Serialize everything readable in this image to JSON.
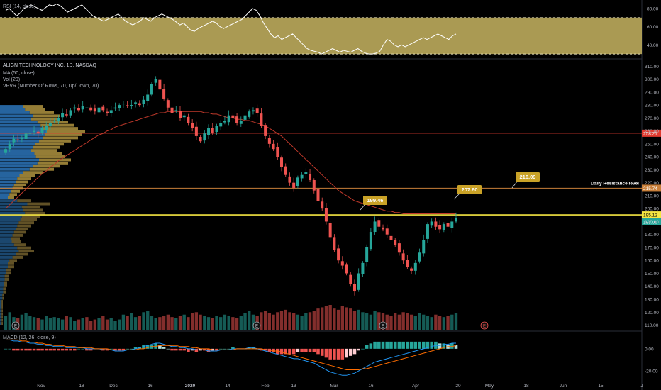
{
  "chart_data": [
    {
      "type": "line",
      "title": "RSI (14, close)",
      "yticks": [
        40,
        60,
        80
      ],
      "ylim": [
        27,
        87
      ],
      "band": [
        30,
        70
      ],
      "colors": {
        "band": "#c8b561",
        "line": "#ffffff"
      },
      "values": [
        78,
        80,
        76,
        72,
        75,
        80,
        82,
        84,
        82,
        80,
        78,
        81,
        84,
        83,
        85,
        83,
        80,
        76,
        78,
        80,
        82,
        84,
        80,
        76,
        72,
        70,
        68,
        66,
        68,
        70,
        72,
        74,
        70,
        66,
        64,
        62,
        64,
        66,
        70,
        68,
        66,
        70,
        72,
        74,
        72,
        70,
        68,
        65,
        62,
        64,
        60,
        56,
        55,
        58,
        60,
        62,
        64,
        66,
        64,
        60,
        58,
        60,
        62,
        64,
        66,
        68,
        72,
        76,
        80,
        78,
        72,
        64,
        58,
        52,
        48,
        50,
        46,
        48,
        50,
        52,
        48,
        44,
        40,
        36,
        34,
        33,
        32,
        30,
        32,
        34,
        36,
        34,
        32,
        34,
        33,
        32,
        34,
        36,
        33,
        31,
        30,
        30,
        31,
        33,
        40,
        46,
        44,
        40,
        38,
        40,
        38,
        40,
        42,
        44,
        46,
        48,
        46,
        48,
        50,
        52,
        50,
        48,
        46,
        50,
        52
      ]
    },
    {
      "type": "candlestick",
      "title": "ALIGN TECHNOLOGY INC, 1D, NASDAQ",
      "legend": [
        "MA (50, close)",
        "Vol (20)",
        "VPVR (Number Of Rows, 70, Up/Down, 70)"
      ],
      "yticks": [
        110,
        120,
        130,
        140,
        150,
        160,
        170,
        180,
        190,
        200,
        210,
        220,
        230,
        240,
        250,
        260,
        270,
        280,
        290,
        300,
        310
      ],
      "ylim": [
        107,
        314
      ],
      "xticks": [
        "Nov",
        "18",
        "Dec",
        "16",
        "2020",
        "14",
        "Feb",
        "13",
        "Mar",
        "16",
        "Apr",
        "20",
        "May",
        "18",
        "Jun",
        "15",
        "J"
      ],
      "colors": {
        "up": "#26a69a",
        "down": "#ef5350",
        "ma": "#c0392b",
        "support": "#f5e642",
        "resistance": "#e03a2f",
        "daily_res": "#c87f3a",
        "callout": "#c9a227"
      },
      "closes": [
        246,
        250,
        254,
        253,
        255,
        258,
        258,
        260,
        258,
        262,
        264,
        266,
        268,
        270,
        274,
        272,
        276,
        278,
        276,
        279,
        278,
        276,
        275,
        278,
        276,
        274,
        276,
        278,
        280,
        281,
        279,
        280,
        282,
        280,
        284,
        288,
        296,
        300,
        292,
        285,
        278,
        274,
        276,
        270,
        272,
        266,
        262,
        256,
        252,
        258,
        262,
        258,
        264,
        266,
        268,
        272,
        270,
        266,
        268,
        272,
        275,
        276,
        274,
        264,
        256,
        250,
        246,
        240,
        232,
        226,
        220,
        216,
        224,
        226,
        228,
        222,
        214,
        206,
        200,
        190,
        178,
        168,
        160,
        156,
        150,
        142,
        136,
        150,
        158,
        170,
        182,
        190,
        186,
        184,
        180,
        176,
        172,
        166,
        160,
        155,
        152,
        158,
        166,
        176,
        188,
        190,
        186,
        184,
        188,
        186,
        190,
        193
      ],
      "volumes": [
        1.2,
        1.5,
        1.1,
        1.0,
        1.3,
        1.4,
        1.2,
        1.1,
        1.0,
        0.9,
        1.2,
        1.0,
        1.1,
        1.0,
        0.9,
        1.2,
        1.1,
        0.8,
        0.9,
        1.0,
        1.1,
        0.8,
        0.9,
        1.0,
        1.2,
        0.9,
        1.0,
        0.8,
        0.9,
        1.3,
        1.2,
        1.4,
        1.1,
        1.2,
        1.5,
        1.6,
        1.2,
        1.0,
        1.1,
        1.2,
        1.3,
        1.1,
        1.0,
        1.2,
        1.3,
        1.1,
        1.4,
        1.5,
        1.3,
        1.2,
        1.1,
        1.0,
        1.2,
        1.1,
        1.3,
        1.2,
        1.1,
        1.0,
        1.2,
        1.4,
        1.6,
        1.3,
        1.2,
        1.5,
        1.6,
        1.4,
        1.3,
        1.5,
        1.6,
        1.7,
        1.5,
        1.4,
        1.3,
        1.2,
        1.4,
        1.5,
        1.6,
        1.8,
        1.9,
        2.0,
        2.1,
        1.8,
        1.7,
        2.0,
        1.9,
        1.8,
        1.6,
        1.7,
        1.5,
        1.4,
        1.3,
        1.6,
        1.5,
        1.4,
        1.3,
        1.2,
        1.4,
        1.3,
        1.5,
        1.4,
        1.3,
        1.2,
        1.4,
        1.3,
        1.2,
        1.1,
        1.3,
        1.2,
        1.1,
        1.2,
        1.3,
        1.4
      ],
      "ma50": [
        200,
        203,
        206,
        209,
        212,
        215,
        218,
        221,
        224,
        227,
        229,
        232,
        234,
        237,
        239,
        241,
        243,
        245,
        247,
        249,
        251,
        253,
        255,
        257,
        258,
        260,
        261,
        263,
        264,
        265,
        266,
        267,
        268,
        269,
        270,
        271,
        272,
        273,
        274,
        274,
        275,
        275,
        275,
        275,
        275,
        275,
        275,
        275,
        275,
        274,
        274,
        273,
        273,
        272,
        271,
        270,
        270,
        269,
        269,
        268,
        268,
        267,
        266,
        265,
        264,
        262,
        260,
        258,
        256,
        253,
        250,
        247,
        244,
        241,
        238,
        235,
        232,
        229,
        226,
        223,
        220,
        217,
        214,
        212,
        210,
        208,
        206,
        205,
        204,
        203,
        202,
        201,
        200,
        199,
        198,
        198,
        197,
        197,
        196,
        196,
        196,
        196,
        196,
        196,
        196,
        196,
        196,
        196,
        196,
        196,
        196,
        196
      ],
      "levels": [
        {
          "name": "resistance",
          "value": 258.21,
          "label": "258.21",
          "color": "#e03a2f"
        },
        {
          "name": "daily-resistance",
          "value": 215.74,
          "label": "215.74",
          "color": "#c87f3a"
        },
        {
          "name": "support",
          "value": 195.12,
          "label": "195.12",
          "color": "#f5e642"
        }
      ],
      "last_price": {
        "value": 193.0,
        "label": "193.00",
        "color": "#26a69a"
      },
      "annotations": [
        {
          "text": "199.46",
          "x_index": 79,
          "y": 199.46
        },
        {
          "text": "207.60",
          "x_index": 111,
          "y": 207.6
        },
        {
          "text": "216.09",
          "x_date_px_hint": "May",
          "y": 216.09
        },
        {
          "text": "Daily Resistance level",
          "y": 219.5
        }
      ],
      "event_markers": [
        "E",
        "E",
        "E",
        "E"
      ],
      "vpvr_profile": [
        0.3,
        0.32,
        0.38,
        0.42,
        0.4,
        0.48,
        0.52,
        0.55,
        0.6,
        0.58,
        0.55,
        0.5,
        0.45,
        0.42,
        0.4,
        0.44,
        0.46,
        0.5,
        0.48,
        0.42,
        0.38,
        0.3,
        0.25,
        0.22,
        0.2,
        0.18,
        0.16,
        0.14,
        0.12,
        0.1,
        0.22,
        0.35,
        0.28,
        0.3,
        0.32,
        0.28,
        0.26,
        0.24,
        0.22,
        0.2,
        0.18,
        0.16,
        0.14,
        0.15,
        0.18,
        0.22,
        0.24,
        0.2,
        0.16,
        0.12,
        0.1,
        0.1,
        0.08,
        0.08,
        0.06,
        0.06,
        0.05,
        0.05,
        0.04,
        0.04,
        0.03,
        0.03,
        0.02,
        0.02,
        0.02,
        0.02,
        0.02,
        0.02,
        0.02,
        0.02
      ]
    },
    {
      "type": "histogram",
      "title": "MACD (12, 26, close, 9)",
      "yticks": [
        0.0,
        -20.0
      ],
      "ytick_labels": [
        "0.00",
        "-20.00"
      ],
      "ylim": [
        -27,
        14
      ],
      "colors": {
        "macd": "#2196f3",
        "signal": "#ff6d00",
        "hist_up": "#26a69a",
        "hist_up_weak": "#b2dfdb",
        "hist_down": "#ef5350",
        "hist_down_weak": "#ffcdd2"
      },
      "macd": [
        8,
        8,
        7,
        7,
        6,
        6,
        5,
        5,
        4,
        4,
        3,
        3,
        2,
        2,
        2,
        1,
        1,
        1,
        1,
        1,
        0,
        0,
        0,
        0,
        -1,
        -1,
        -1,
        -2,
        -2,
        -2,
        -1,
        -1,
        0,
        1,
        2,
        3,
        4,
        5,
        5,
        4,
        3,
        2,
        2,
        1,
        1,
        0,
        0,
        -1,
        -1,
        -1,
        -2,
        -2,
        -2,
        -1,
        -1,
        -1,
        0,
        0,
        0,
        0,
        1,
        1,
        0,
        -1,
        -2,
        -3,
        -4,
        -5,
        -6,
        -7,
        -8,
        -9,
        -9,
        -10,
        -11,
        -12,
        -13,
        -15,
        -17,
        -19,
        -21,
        -22,
        -23,
        -24,
        -24,
        -23,
        -22,
        -20,
        -18,
        -16,
        -14,
        -12,
        -11,
        -10,
        -9,
        -8,
        -7,
        -6,
        -5,
        -4,
        -3,
        -2,
        -1,
        0,
        1,
        2,
        3,
        3,
        4,
        4,
        5,
        5
      ],
      "signal": [
        8,
        8,
        8,
        8,
        7,
        7,
        6,
        6,
        5,
        5,
        4,
        4,
        3,
        3,
        3,
        2,
        2,
        2,
        1,
        1,
        1,
        1,
        0,
        0,
        0,
        0,
        -1,
        -1,
        -1,
        -1,
        -1,
        -1,
        -1,
        0,
        0,
        1,
        2,
        2,
        3,
        3,
        3,
        3,
        3,
        2,
        2,
        2,
        1,
        1,
        0,
        0,
        0,
        -1,
        -1,
        -1,
        -1,
        -1,
        -1,
        0,
        0,
        0,
        0,
        0,
        0,
        0,
        -1,
        -1,
        -2,
        -2,
        -3,
        -4,
        -5,
        -6,
        -7,
        -8,
        -9,
        -10,
        -11,
        -12,
        -13,
        -14,
        -15,
        -16,
        -17,
        -18,
        -19,
        -19,
        -19,
        -19,
        -18,
        -18,
        -17,
        -16,
        -15,
        -14,
        -13,
        -12,
        -11,
        -10,
        -9,
        -8,
        -7,
        -6,
        -5,
        -4,
        -3,
        -2,
        -1,
        0,
        1,
        2,
        2,
        3
      ]
    }
  ]
}
